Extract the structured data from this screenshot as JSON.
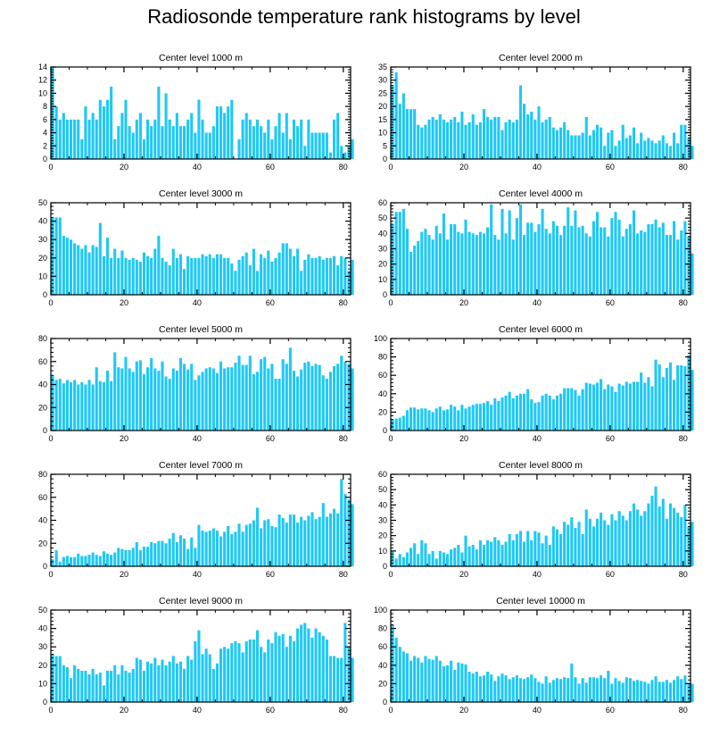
{
  "title": "Radiosonde temperature rank histograms by level",
  "colors": {
    "bar": "#1ec8f5",
    "axis": "#000000",
    "background": "#ffffff"
  },
  "chart_data": [
    {
      "type": "bar",
      "title": "Center level 1000 m",
      "xlabel": "",
      "ylabel": "",
      "xlim": [
        0,
        82
      ],
      "ylim": [
        0,
        14
      ],
      "xticks": [
        0,
        20,
        40,
        60,
        80
      ],
      "yticks": [
        0,
        2,
        4,
        6,
        8,
        10,
        12,
        14
      ],
      "values": [
        14,
        8,
        6,
        7,
        6,
        6,
        6,
        6,
        3,
        8,
        6,
        7,
        6,
        9,
        8,
        9,
        11,
        3,
        5,
        7,
        9,
        5,
        4,
        6,
        7,
        3,
        6,
        5,
        6,
        11,
        5,
        10,
        6,
        5,
        7,
        5,
        5,
        6,
        7,
        4,
        9,
        6,
        4,
        4,
        5,
        8,
        8,
        7,
        8,
        9,
        0,
        3,
        6,
        7,
        6,
        5,
        6,
        5,
        4,
        6,
        3,
        5,
        7,
        4,
        7,
        3,
        6,
        5,
        6,
        2,
        6,
        4,
        4,
        4,
        4,
        4,
        1,
        6,
        7,
        2,
        1,
        2,
        3
      ]
    },
    {
      "type": "bar",
      "title": "Center level 2000 m",
      "xlabel": "",
      "ylabel": "",
      "xlim": [
        0,
        82
      ],
      "ylim": [
        0,
        35
      ],
      "xticks": [
        0,
        20,
        40,
        60,
        80
      ],
      "yticks": [
        0,
        5,
        10,
        15,
        20,
        25,
        30,
        35
      ],
      "values": [
        28,
        33,
        21,
        25,
        19,
        19,
        19,
        13,
        12,
        13,
        15,
        16,
        15,
        17,
        15,
        14,
        15,
        16,
        14,
        18,
        13,
        14,
        17,
        13,
        14,
        19,
        16,
        15,
        16,
        16,
        11,
        14,
        15,
        14,
        15,
        28,
        21,
        17,
        18,
        15,
        20,
        14,
        15,
        16,
        12,
        11,
        12,
        14,
        11,
        9,
        9,
        9,
        10,
        16,
        9,
        11,
        13,
        12,
        5,
        10,
        11,
        5,
        7,
        13,
        8,
        9,
        12,
        6,
        10,
        7,
        8,
        7,
        6,
        7,
        9,
        6,
        5,
        10,
        6,
        13,
        13,
        8,
        5
      ]
    },
    {
      "type": "bar",
      "title": "Center level 3000 m",
      "xlabel": "",
      "ylabel": "",
      "xlim": [
        0,
        82
      ],
      "ylim": [
        0,
        50
      ],
      "xticks": [
        0,
        20,
        40,
        60,
        80
      ],
      "yticks": [
        0,
        10,
        20,
        30,
        40,
        50
      ],
      "values": [
        42,
        42,
        42,
        32,
        31,
        30,
        28,
        27,
        25,
        27,
        23,
        27,
        26,
        39,
        21,
        31,
        20,
        25,
        20,
        24,
        20,
        19,
        20,
        19,
        18,
        23,
        21,
        20,
        25,
        32,
        20,
        18,
        16,
        25,
        20,
        22,
        14,
        21,
        20,
        20,
        20,
        22,
        21,
        22,
        20,
        22,
        22,
        20,
        20,
        17,
        13,
        19,
        21,
        23,
        16,
        25,
        13,
        22,
        20,
        24,
        18,
        20,
        23,
        28,
        28,
        25,
        21,
        25,
        13,
        19,
        22,
        20,
        20,
        21,
        19,
        20,
        20,
        21,
        16,
        21,
        20,
        13,
        19
      ]
    },
    {
      "type": "bar",
      "title": "Center level 4000 m",
      "xlabel": "",
      "ylabel": "",
      "xlim": [
        0,
        82
      ],
      "ylim": [
        0,
        60
      ],
      "xticks": [
        0,
        20,
        40,
        60,
        80
      ],
      "yticks": [
        0,
        10,
        20,
        30,
        40,
        50,
        60
      ],
      "values": [
        46,
        54,
        54,
        56,
        43,
        28,
        32,
        35,
        41,
        43,
        39,
        36,
        45,
        40,
        53,
        36,
        46,
        46,
        41,
        40,
        49,
        41,
        40,
        39,
        41,
        40,
        44,
        59,
        39,
        36,
        56,
        40,
        55,
        36,
        50,
        59,
        39,
        47,
        47,
        41,
        46,
        56,
        43,
        40,
        48,
        45,
        39,
        45,
        57,
        45,
        55,
        44,
        45,
        40,
        38,
        48,
        54,
        44,
        44,
        38,
        50,
        54,
        49,
        38,
        43,
        46,
        55,
        40,
        42,
        41,
        46,
        46,
        49,
        44,
        47,
        39,
        39,
        48,
        36,
        42,
        48,
        38,
        27
      ]
    },
    {
      "type": "bar",
      "title": "Center level 5000 m",
      "xlabel": "",
      "ylabel": "",
      "xlim": [
        0,
        82
      ],
      "ylim": [
        0,
        80
      ],
      "xticks": [
        0,
        20,
        40,
        60,
        80
      ],
      "yticks": [
        0,
        20,
        40,
        60,
        80
      ],
      "values": [
        48,
        44,
        45,
        41,
        44,
        42,
        44,
        40,
        42,
        40,
        44,
        40,
        55,
        43,
        42,
        52,
        43,
        68,
        55,
        54,
        64,
        54,
        51,
        60,
        61,
        49,
        55,
        63,
        54,
        52,
        60,
        47,
        45,
        54,
        52,
        63,
        58,
        53,
        58,
        44,
        48,
        51,
        54,
        55,
        54,
        50,
        60,
        54,
        55,
        55,
        59,
        65,
        57,
        57,
        65,
        49,
        51,
        62,
        64,
        54,
        58,
        45,
        45,
        62,
        58,
        72,
        52,
        47,
        53,
        59,
        60,
        56,
        58,
        57,
        48,
        45,
        51,
        56,
        58,
        65,
        60,
        58,
        54
      ]
    },
    {
      "type": "bar",
      "title": "Center level 6000 m",
      "xlabel": "",
      "ylabel": "",
      "xlim": [
        0,
        82
      ],
      "ylim": [
        0,
        100
      ],
      "xticks": [
        0,
        20,
        40,
        60,
        80
      ],
      "yticks": [
        0,
        20,
        40,
        60,
        80,
        100
      ],
      "values": [
        12,
        13,
        14,
        16,
        22,
        25,
        25,
        23,
        24,
        24,
        22,
        20,
        24,
        26,
        22,
        23,
        28,
        26,
        22,
        28,
        24,
        26,
        28,
        29,
        29,
        30,
        32,
        28,
        35,
        32,
        36,
        38,
        42,
        35,
        38,
        40,
        40,
        45,
        34,
        30,
        31,
        38,
        40,
        38,
        34,
        38,
        40,
        46,
        46,
        46,
        44,
        38,
        45,
        52,
        51,
        50,
        52,
        56,
        45,
        50,
        48,
        42,
        51,
        49,
        53,
        51,
        53,
        53,
        63,
        52,
        58,
        48,
        77,
        72,
        58,
        68,
        74,
        55,
        71,
        71,
        70,
        82,
        66
      ]
    },
    {
      "type": "bar",
      "title": "Center level 7000 m",
      "xlabel": "",
      "ylabel": "",
      "xlim": [
        0,
        82
      ],
      "ylim": [
        0,
        80
      ],
      "xticks": [
        0,
        20,
        40,
        60,
        80
      ],
      "yticks": [
        0,
        20,
        40,
        60,
        80
      ],
      "values": [
        6,
        14,
        4,
        8,
        9,
        8,
        8,
        11,
        9,
        9,
        10,
        12,
        10,
        9,
        13,
        11,
        10,
        12,
        16,
        15,
        14,
        14,
        16,
        21,
        14,
        17,
        17,
        21,
        20,
        22,
        22,
        20,
        24,
        29,
        21,
        27,
        24,
        15,
        25,
        16,
        36,
        31,
        30,
        31,
        33,
        31,
        26,
        30,
        35,
        28,
        30,
        37,
        30,
        36,
        37,
        40,
        51,
        33,
        40,
        41,
        35,
        34,
        45,
        42,
        38,
        45,
        45,
        38,
        43,
        40,
        44,
        47,
        41,
        43,
        55,
        43,
        46,
        50,
        46,
        76,
        63,
        58,
        54
      ]
    },
    {
      "type": "bar",
      "title": "Center level 8000 m",
      "xlabel": "",
      "ylabel": "",
      "xlim": [
        0,
        82
      ],
      "ylim": [
        0,
        60
      ],
      "xticks": [
        0,
        20,
        40,
        60,
        80
      ],
      "yticks": [
        0,
        10,
        20,
        30,
        40,
        50,
        60
      ],
      "values": [
        10,
        5,
        8,
        6,
        9,
        12,
        15,
        8,
        17,
        15,
        8,
        10,
        5,
        10,
        9,
        8,
        11,
        12,
        14,
        9,
        20,
        13,
        14,
        11,
        17,
        14,
        17,
        16,
        19,
        17,
        14,
        16,
        21,
        17,
        21,
        23,
        16,
        23,
        17,
        23,
        22,
        15,
        20,
        14,
        26,
        24,
        21,
        29,
        27,
        32,
        25,
        29,
        21,
        37,
        31,
        26,
        31,
        35,
        30,
        27,
        34,
        30,
        36,
        33,
        30,
        36,
        41,
        37,
        33,
        36,
        41,
        46,
        52,
        39,
        44,
        31,
        41,
        38,
        35,
        32,
        40,
        26,
        29
      ]
    },
    {
      "type": "bar",
      "title": "Center level 9000 m",
      "xlabel": "",
      "ylabel": "",
      "xlim": [
        0,
        82
      ],
      "ylim": [
        0,
        50
      ],
      "xticks": [
        0,
        20,
        40,
        60,
        80
      ],
      "yticks": [
        0,
        10,
        20,
        30,
        40,
        50
      ],
      "values": [
        26,
        25,
        25,
        20,
        19,
        13,
        20,
        18,
        17,
        17,
        15,
        18,
        15,
        16,
        9,
        17,
        17,
        20,
        15,
        20,
        17,
        16,
        18,
        24,
        23,
        17,
        22,
        21,
        24,
        20,
        23,
        20,
        22,
        25,
        21,
        22,
        18,
        25,
        23,
        33,
        39,
        26,
        29,
        26,
        18,
        21,
        29,
        30,
        29,
        32,
        33,
        32,
        27,
        33,
        34,
        34,
        39,
        30,
        27,
        34,
        32,
        38,
        36,
        37,
        30,
        36,
        33,
        40,
        42,
        43,
        40,
        35,
        40,
        38,
        36,
        34,
        25,
        25,
        24,
        24,
        43,
        30,
        24
      ]
    },
    {
      "type": "bar",
      "title": "Center level 10000 m",
      "xlabel": "",
      "ylabel": "",
      "xlim": [
        0,
        82
      ],
      "ylim": [
        0,
        100
      ],
      "xticks": [
        0,
        20,
        40,
        60,
        80
      ],
      "yticks": [
        0,
        20,
        40,
        60,
        80,
        100
      ],
      "values": [
        84,
        70,
        60,
        55,
        53,
        45,
        50,
        48,
        43,
        50,
        47,
        46,
        50,
        45,
        39,
        40,
        45,
        35,
        43,
        42,
        41,
        33,
        31,
        33,
        28,
        29,
        33,
        30,
        23,
        28,
        31,
        29,
        25,
        27,
        29,
        26,
        25,
        27,
        30,
        26,
        22,
        20,
        28,
        21,
        24,
        26,
        25,
        27,
        26,
        42,
        27,
        20,
        26,
        21,
        27,
        27,
        26,
        29,
        26,
        34,
        20,
        26,
        23,
        21,
        27,
        26,
        23,
        24,
        23,
        22,
        20,
        24,
        28,
        22,
        22,
        24,
        21,
        24,
        28,
        25,
        29,
        21,
        20
      ]
    }
  ]
}
